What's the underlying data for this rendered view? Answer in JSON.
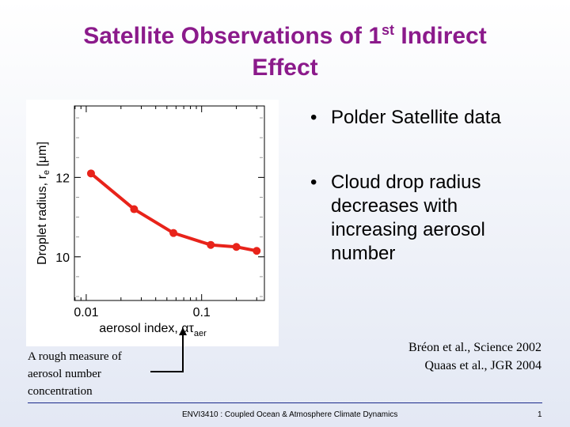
{
  "slide": {
    "title_part1": "Satellite Observations of 1",
    "title_sup": "st",
    "title_part2": " Indirect",
    "title_line2": "Effect",
    "bullets": [
      {
        "marker": "•",
        "text": "Polder Satellite data"
      },
      {
        "marker": "•",
        "text": "Cloud drop radius decreases with increasing aerosol number"
      }
    ],
    "caption": "A rough measure of aerosol number concentration",
    "references": [
      "Bréon et al., Science 2002",
      "Quaas et al., JGR 2004"
    ],
    "footer_course": "ENVI3410 : Coupled Ocean & Atmosphere Climate Dynamics",
    "footer_page": "1"
  },
  "chart_data": {
    "type": "line",
    "x_scale": "log",
    "x": [
      0.011,
      0.026,
      0.057,
      0.12,
      0.2,
      0.3
    ],
    "y": [
      12.1,
      11.2,
      10.6,
      10.3,
      10.25,
      10.15
    ],
    "xlim": [
      0.0079,
      0.35
    ],
    "ylim": [
      8.9,
      13.8
    ],
    "xticks": [
      "0.01",
      "0.1"
    ],
    "yticks": [
      "10",
      "12"
    ],
    "xlabel": "aerosol index, ατ",
    "xlabel_sub": "aer",
    "ylabel": "Droplet radius, r",
    "ylabel_sub": "e",
    "ylabel_unit": " [μm]",
    "line_color": "#e8231a"
  }
}
